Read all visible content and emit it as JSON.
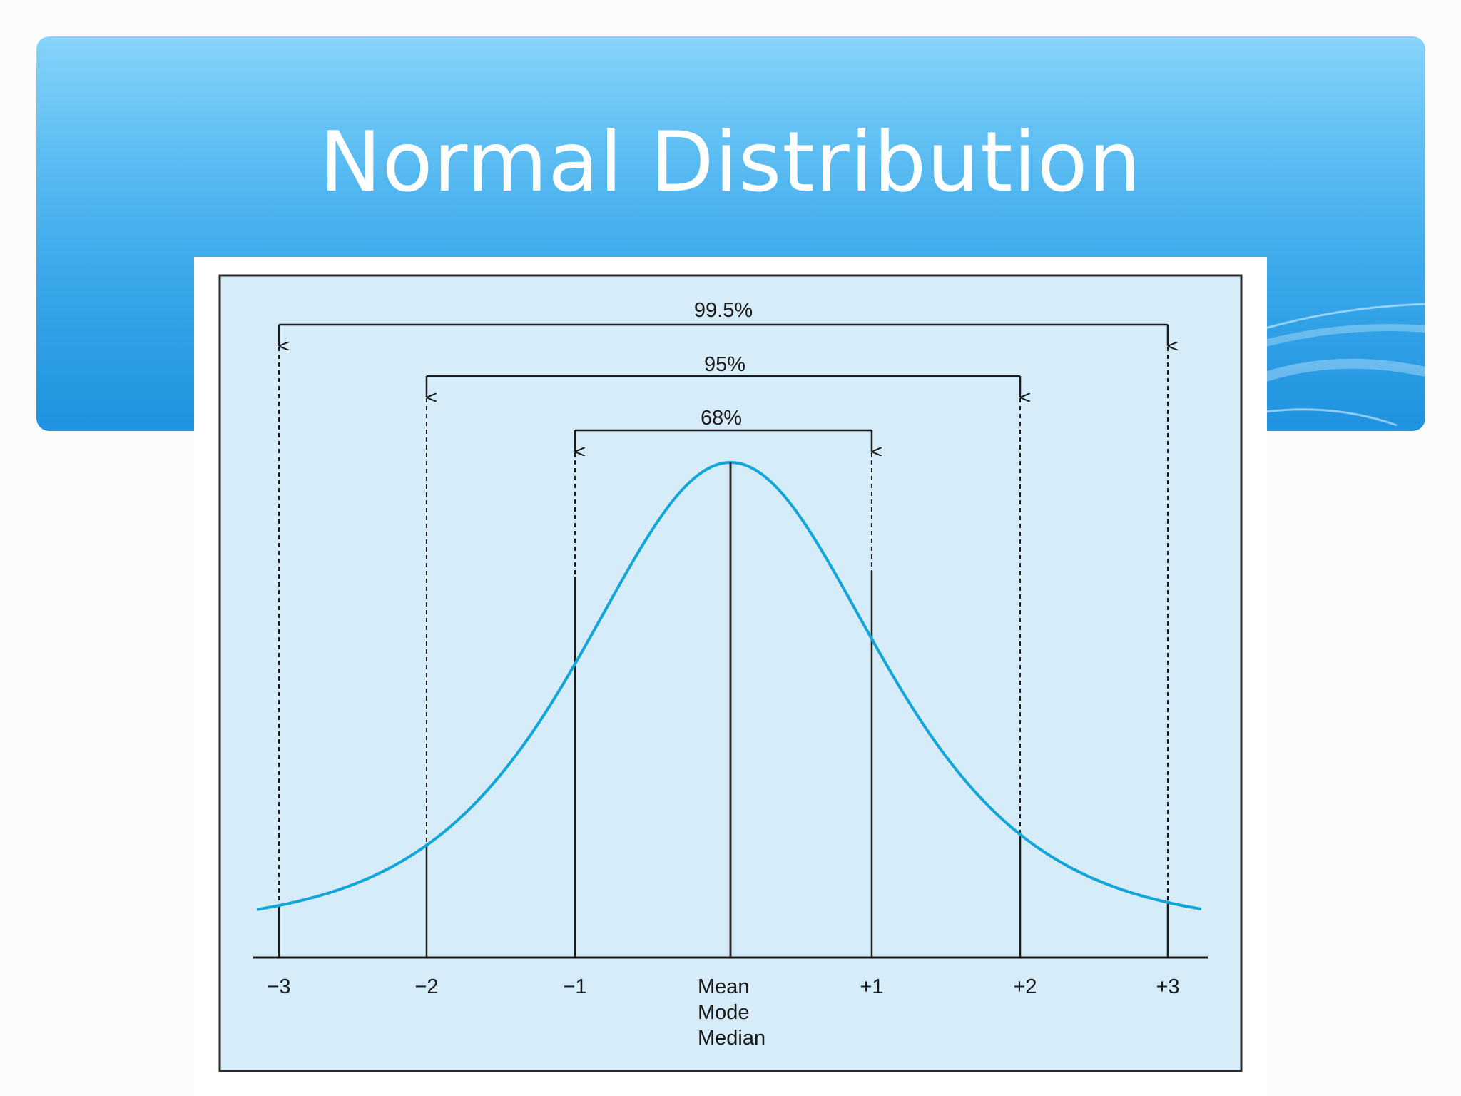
{
  "slide": {
    "title": "Normal Distribution"
  },
  "diagram": {
    "ranges": [
      {
        "label": "99.5%",
        "from": -3,
        "to": 3
      },
      {
        "label": "95%",
        "from": -2,
        "to": 2
      },
      {
        "label": "68%",
        "from": -1,
        "to": 1
      }
    ],
    "axis_ticks": [
      "−3",
      "−2",
      "−1",
      "+1",
      "+2",
      "+3"
    ],
    "center_labels": [
      "Mean",
      "Mode",
      "Median"
    ],
    "colors": {
      "curve": "#12a5d9",
      "panel": "#d6ecf9",
      "header_top": "#86d4fb",
      "header_bottom": "#1f93e0"
    }
  }
}
